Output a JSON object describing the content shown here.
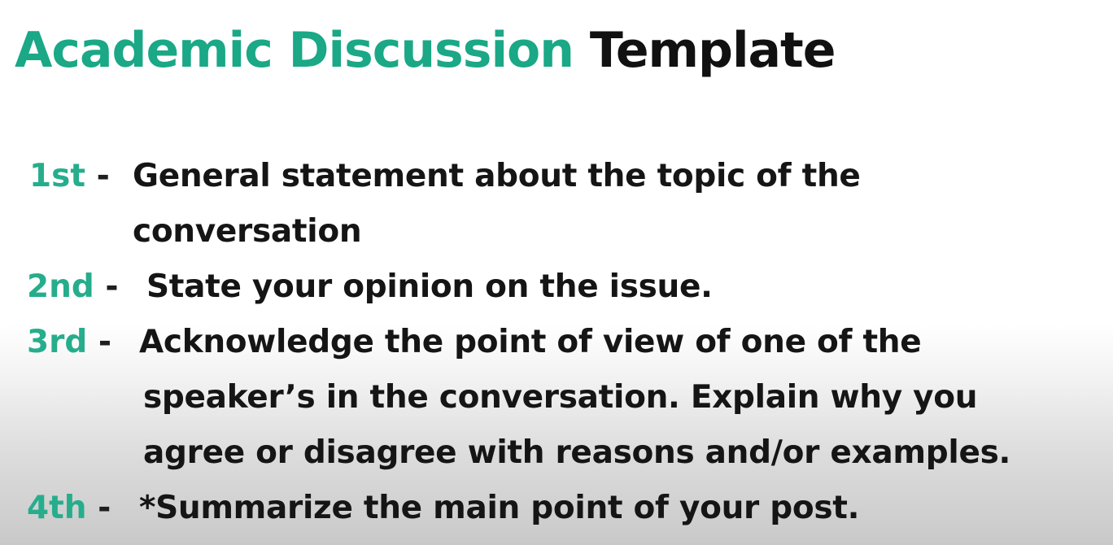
{
  "title": {
    "accent": "Academic Discussion",
    "rest": "Template"
  },
  "steps": [
    {
      "number": "1st",
      "dash": "-",
      "lines": [
        "General statement about the topic of the",
        "conversation"
      ]
    },
    {
      "number": "2nd",
      "dash": "-",
      "lines": [
        "State your opinion on the issue."
      ]
    },
    {
      "number": "3rd",
      "dash": "-",
      "lines": [
        "Acknowledge the point of view of one of the",
        "speaker’s in the conversation. Explain why you",
        "agree or disagree with reasons and/or examples."
      ]
    },
    {
      "number": "4th",
      "dash": "-",
      "lines": [
        "*Summarize the main point of your post."
      ]
    }
  ],
  "colors": {
    "accent": "#1aa886",
    "text": "#111111"
  }
}
